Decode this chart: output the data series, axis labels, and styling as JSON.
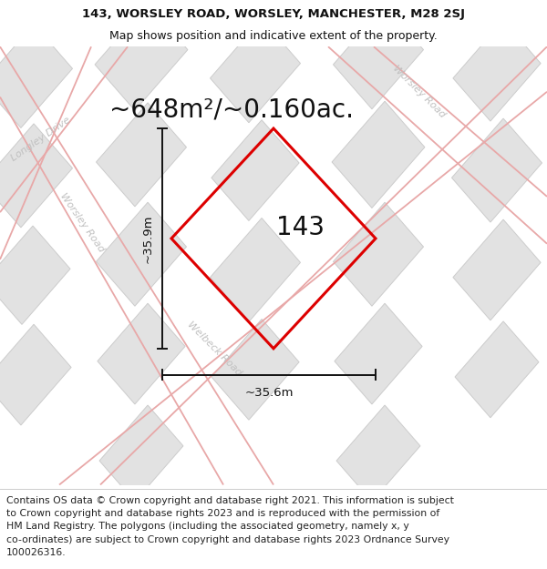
{
  "title_line1": "143, WORSLEY ROAD, WORSLEY, MANCHESTER, M28 2SJ",
  "title_line2": "Map shows position and indicative extent of the property.",
  "area_text": "~648m²/~0.160ac.",
  "label_143": "143",
  "dim_width": "~35.6m",
  "dim_height": "~35.9m",
  "footer_lines": [
    "Contains OS data © Crown copyright and database right 2021. This information is subject",
    "to Crown copyright and database rights 2023 and is reproduced with the permission of",
    "HM Land Registry. The polygons (including the associated geometry, namely x, y",
    "co-ordinates) are subject to Crown copyright and database rights 2023 Ordnance Survey",
    "100026316."
  ],
  "bg_color": "#f7f7f7",
  "building_fill": "#e2e2e2",
  "building_edge": "#cccccc",
  "road_line_color": "#e8a8a8",
  "property_color": "#dd0000",
  "dim_line_color": "#111111",
  "road_label_color": "#c0c0c0",
  "title_fontsize": 9.5,
  "subtitle_fontsize": 9,
  "area_fontsize": 20,
  "label_fontsize": 20,
  "footer_fontsize": 7.8,
  "dim_fontsize": 9.5,
  "road_label_fontsize": 8
}
